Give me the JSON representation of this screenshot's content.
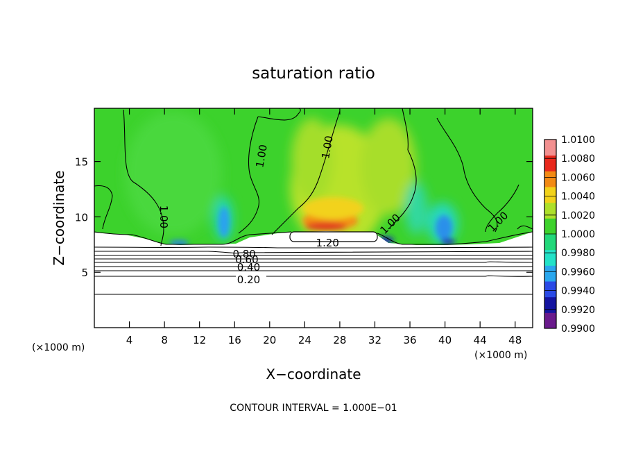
{
  "chart_data": {
    "type": "heatmap",
    "title": "saturation ratio",
    "xlabel": "X−coordinate",
    "ylabel": "Z−coordinate",
    "x_unit_left": "(×1000 m)",
    "x_unit_right": "(×1000 m)",
    "footer": "CONTOUR INTERVAL = 1.000E−01",
    "xlim": [
      0,
      50
    ],
    "ylim": [
      0,
      19.8
    ],
    "x_ticks": [
      "4",
      "8",
      "12",
      "16",
      "20",
      "24",
      "28",
      "32",
      "36",
      "40",
      "44",
      "48"
    ],
    "x_tick_values": [
      4,
      8,
      12,
      16,
      20,
      24,
      28,
      32,
      36,
      40,
      44,
      48
    ],
    "y_ticks": [
      "5",
      "10",
      "15"
    ],
    "y_tick_values": [
      5,
      10,
      15
    ],
    "colorbar": {
      "min": 0.99,
      "max": 1.01,
      "labels": [
        "1.0100",
        "1.0080",
        "1.0060",
        "1.0040",
        "1.0020",
        "1.0000",
        "0.9980",
        "0.9960",
        "0.9940",
        "0.9920",
        "0.9900"
      ],
      "colors": [
        "#6a1a8c",
        "#1414a0",
        "#2a4ae6",
        "#29a7ee",
        "#22e2c8",
        "#22d87a",
        "#3ed22c",
        "#aee02a",
        "#f2d21a",
        "#f28a14",
        "#e8281c",
        "#f29090"
      ]
    },
    "contour_labels": [
      {
        "text": "1.00",
        "x": 8.0,
        "z": 10.0,
        "rotate": 90
      },
      {
        "text": "1.00",
        "x": 19.0,
        "z": 15.5,
        "rotate": -80
      },
      {
        "text": "1.00",
        "x": 26.5,
        "z": 16.3,
        "rotate": -80
      },
      {
        "text": "1.00",
        "x": 33.7,
        "z": 9.4,
        "rotate": -45
      },
      {
        "text": "1.00",
        "x": 46.0,
        "z": 9.6,
        "rotate": -45
      },
      {
        "text": "1.20",
        "x": 26.6,
        "z": 7.7,
        "rotate": 0
      },
      {
        "text": "0.80",
        "x": 17.1,
        "z": 6.7,
        "rotate": 0
      },
      {
        "text": "0.60",
        "x": 17.4,
        "z": 6.2,
        "rotate": 0
      },
      {
        "text": "0.40",
        "x": 17.6,
        "z": 5.5,
        "rotate": 0
      },
      {
        "text": "0.20",
        "x": 17.6,
        "z": 4.4,
        "rotate": 0
      }
    ]
  }
}
